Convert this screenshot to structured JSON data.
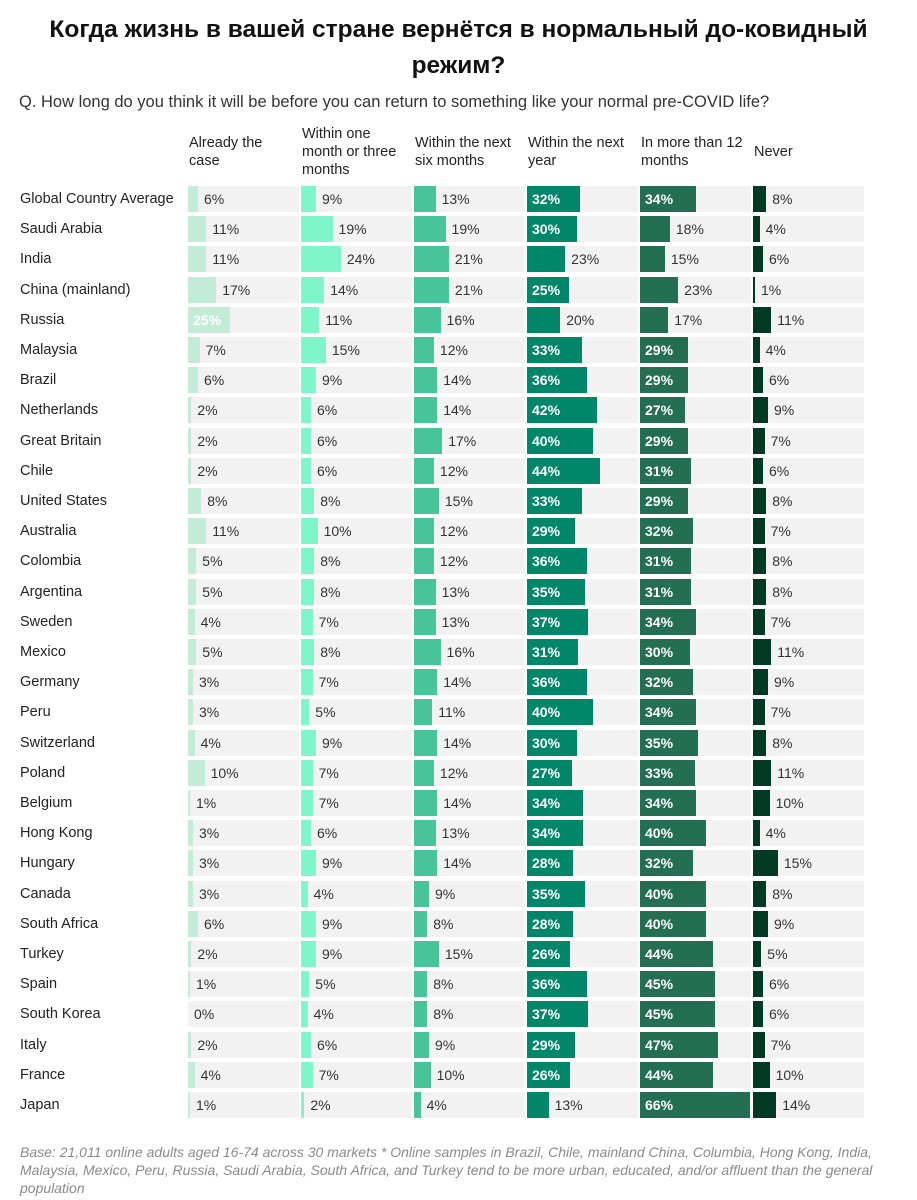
{
  "title": "Когда жизнь в вашей стране вернётся в нормальный до-ковидный режим?",
  "subtitle": "Q. How long do you think it will be before you can return to something like your normal pre-COVID life?",
  "footnote": "Base: 21,011 online adults aged 16-74 across 30 markets * Online samples in Brazil, Chile, mainland China, Columbia, Hong Kong, India, Malaysia, Mexico, Peru, Russia, Saudi Arabia, South Africa, and Turkey tend to be more urban, educated, and/or affluent than the general population",
  "chart_data": {
    "type": "table",
    "unit": "%",
    "columns": [
      {
        "name": "Already the case",
        "color": "#c3ecd8"
      },
      {
        "name": "Within one month or three months",
        "color": "#7ff5cc"
      },
      {
        "name": "Within the next six months",
        "color": "#47c49a"
      },
      {
        "name": "Within the next year",
        "color": "#00876a"
      },
      {
        "name": "In more than 12 months",
        "color": "#246e53"
      },
      {
        "name": "Never",
        "color": "#003a24"
      }
    ],
    "categories": [
      "Global Country Average",
      "Saudi Arabia",
      "India",
      "China (mainland)",
      "Russia",
      "Malaysia",
      "Brazil",
      "Netherlands",
      "Great Britain",
      "Chile",
      "United States",
      "Australia",
      "Colombia",
      "Argentina",
      "Sweden",
      "Mexico",
      "Germany",
      "Peru",
      "Switzerland",
      "Poland",
      "Belgium",
      "Hong Kong",
      "Hungary",
      "Canada",
      "South Africa",
      "Turkey",
      "Spain",
      "South Korea",
      "Italy",
      "France",
      "Japan"
    ],
    "values": [
      [
        6,
        9,
        13,
        32,
        34,
        8
      ],
      [
        11,
        19,
        19,
        30,
        18,
        4
      ],
      [
        11,
        24,
        21,
        23,
        15,
        6
      ],
      [
        17,
        14,
        21,
        25,
        23,
        1
      ],
      [
        25,
        11,
        16,
        20,
        17,
        11
      ],
      [
        7,
        15,
        12,
        33,
        29,
        4
      ],
      [
        6,
        9,
        14,
        36,
        29,
        6
      ],
      [
        2,
        6,
        14,
        42,
        27,
        9
      ],
      [
        2,
        6,
        17,
        40,
        29,
        7
      ],
      [
        2,
        6,
        12,
        44,
        31,
        6
      ],
      [
        8,
        8,
        15,
        33,
        29,
        8
      ],
      [
        11,
        10,
        12,
        29,
        32,
        7
      ],
      [
        5,
        8,
        12,
        36,
        31,
        8
      ],
      [
        5,
        8,
        13,
        35,
        31,
        8
      ],
      [
        4,
        7,
        13,
        37,
        34,
        7
      ],
      [
        5,
        8,
        16,
        31,
        30,
        11
      ],
      [
        3,
        7,
        14,
        36,
        32,
        9
      ],
      [
        3,
        5,
        11,
        40,
        34,
        7
      ],
      [
        4,
        9,
        14,
        30,
        35,
        8
      ],
      [
        10,
        7,
        12,
        27,
        33,
        11
      ],
      [
        1,
        7,
        14,
        34,
        34,
        10
      ],
      [
        3,
        6,
        13,
        34,
        40,
        4
      ],
      [
        3,
        9,
        14,
        28,
        32,
        15
      ],
      [
        3,
        4,
        9,
        35,
        40,
        8
      ],
      [
        6,
        9,
        8,
        28,
        40,
        9
      ],
      [
        2,
        9,
        15,
        26,
        44,
        5
      ],
      [
        1,
        5,
        8,
        36,
        45,
        6
      ],
      [
        0,
        4,
        8,
        37,
        45,
        6
      ],
      [
        2,
        6,
        9,
        29,
        47,
        7
      ],
      [
        4,
        7,
        10,
        26,
        44,
        10
      ],
      [
        1,
        2,
        4,
        13,
        66,
        14
      ]
    ],
    "value_labels_inside_bar": [
      [
        false,
        false,
        false,
        true,
        true,
        false
      ],
      [
        false,
        false,
        false,
        true,
        false,
        false
      ],
      [
        false,
        false,
        false,
        false,
        false,
        false
      ],
      [
        false,
        false,
        false,
        true,
        false,
        false
      ],
      [
        true,
        false,
        false,
        false,
        false,
        false
      ],
      [
        false,
        false,
        false,
        true,
        true,
        false
      ],
      [
        false,
        false,
        false,
        true,
        true,
        false
      ],
      [
        false,
        false,
        false,
        true,
        true,
        false
      ],
      [
        false,
        false,
        false,
        true,
        true,
        false
      ],
      [
        false,
        false,
        false,
        true,
        true,
        false
      ],
      [
        false,
        false,
        false,
        true,
        true,
        false
      ],
      [
        false,
        false,
        false,
        true,
        true,
        false
      ],
      [
        false,
        false,
        false,
        true,
        true,
        false
      ],
      [
        false,
        false,
        false,
        true,
        true,
        false
      ],
      [
        false,
        false,
        false,
        true,
        true,
        false
      ],
      [
        false,
        false,
        false,
        true,
        true,
        false
      ],
      [
        false,
        false,
        false,
        true,
        true,
        false
      ],
      [
        false,
        false,
        false,
        true,
        true,
        false
      ],
      [
        false,
        false,
        false,
        true,
        true,
        false
      ],
      [
        false,
        false,
        false,
        true,
        true,
        false
      ],
      [
        false,
        false,
        false,
        true,
        true,
        false
      ],
      [
        false,
        false,
        false,
        true,
        true,
        false
      ],
      [
        false,
        false,
        false,
        true,
        true,
        false
      ],
      [
        false,
        false,
        false,
        true,
        true,
        false
      ],
      [
        false,
        false,
        false,
        true,
        true,
        false
      ],
      [
        false,
        false,
        false,
        true,
        true,
        false
      ],
      [
        false,
        false,
        false,
        true,
        true,
        false
      ],
      [
        false,
        false,
        false,
        true,
        true,
        false
      ],
      [
        false,
        false,
        false,
        true,
        true,
        false
      ],
      [
        false,
        false,
        false,
        true,
        true,
        false
      ],
      [
        false,
        false,
        false,
        false,
        true,
        false
      ]
    ],
    "column_headers": [
      "Already the\ncase",
      "Within one\nmonth or three\nmonths",
      "Within the next\nsix months",
      "Within the next\nyear",
      "In more than 12\nmonths",
      "Never"
    ]
  }
}
